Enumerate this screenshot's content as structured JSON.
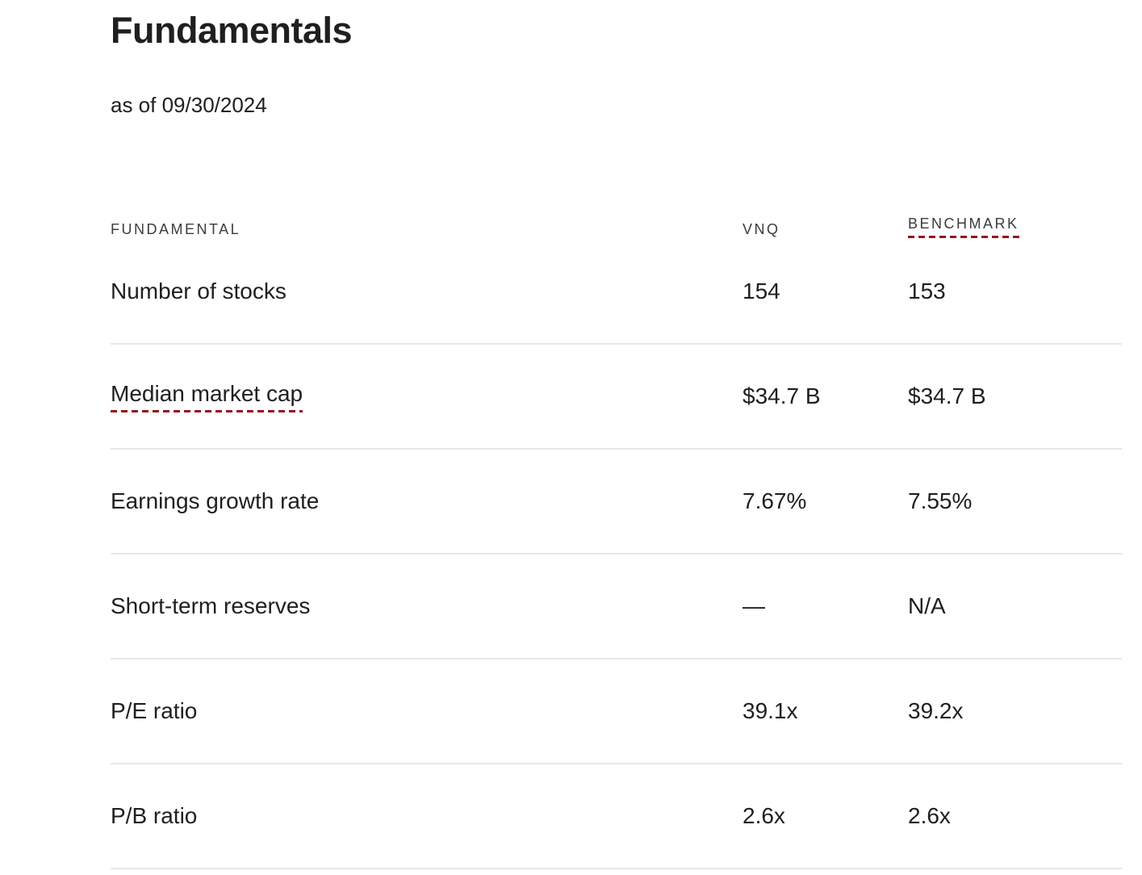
{
  "page": {
    "title": "Fundamentals",
    "as_of": "as of 09/30/2024"
  },
  "table": {
    "columns": [
      {
        "label": "FUNDAMENTAL",
        "has_definition_link": false
      },
      {
        "label": "VNQ",
        "has_definition_link": false
      },
      {
        "label": "BENCHMARK",
        "has_definition_link": true
      }
    ],
    "rows": [
      {
        "label": "Number of stocks",
        "vnq": "154",
        "benchmark": "153",
        "has_definition_link": false
      },
      {
        "label": "Median market cap",
        "vnq": "$34.7 B",
        "benchmark": "$34.7 B",
        "has_definition_link": true
      },
      {
        "label": "Earnings growth rate",
        "vnq": "7.67%",
        "benchmark": "7.55%",
        "has_definition_link": false
      },
      {
        "label": "Short-term reserves",
        "vnq": "—",
        "benchmark": "N/A",
        "has_definition_link": false
      },
      {
        "label": "P/E ratio",
        "vnq": "39.1x",
        "benchmark": "39.2x",
        "has_definition_link": false
      },
      {
        "label": "P/B ratio",
        "vnq": "2.6x",
        "benchmark": "2.6x",
        "has_definition_link": false
      }
    ]
  },
  "colors": {
    "text": "#1f1f1f",
    "header_text": "#3c3c3c",
    "definition_underline": "#96151d",
    "divider": "#e7e7e7"
  }
}
